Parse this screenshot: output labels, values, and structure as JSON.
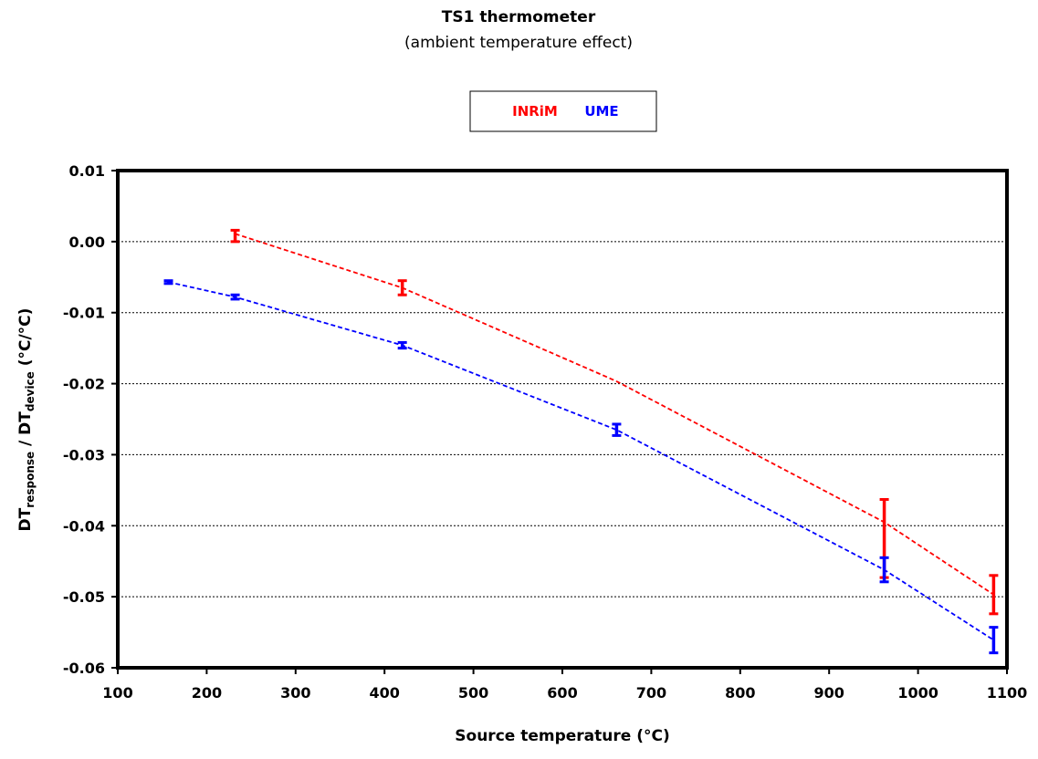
{
  "chart_data": {
    "type": "scatter",
    "title": "TS1 thermometer",
    "subtitle": "(ambient temperature effect)",
    "xlabel": "Source temperature (°C)",
    "ylabel": {
      "prefix": "DT",
      "sub1": "response",
      "mid": " / DT",
      "sub2": "device",
      "suffix": " (°C/°C)"
    },
    "xlim": [
      100,
      1100
    ],
    "ylim": [
      -0.06,
      0.01
    ],
    "x_ticks": [
      "100",
      "200",
      "300",
      "400",
      "500",
      "600",
      "700",
      "800",
      "900",
      "1000",
      "1100"
    ],
    "y_ticks": [
      "0.01",
      "0.00",
      "-0.01",
      "-0.02",
      "-0.03",
      "-0.04",
      "-0.05",
      "-0.06"
    ],
    "grid": "horizontal dotted",
    "legend_position": "top-center",
    "series": [
      {
        "name": "INRiM",
        "color": "#ff0000",
        "points": [
          {
            "x": 232,
            "y": 0.0008,
            "err": 0.0008
          },
          {
            "x": 420,
            "y": -0.0065,
            "err": 0.001
          },
          {
            "x": 962,
            "y": -0.0418,
            "err": 0.0055
          },
          {
            "x": 1085,
            "y": -0.0497,
            "err": 0.0027
          }
        ],
        "trend": [
          [
            232,
            0.0011
          ],
          [
            420,
            -0.0065
          ],
          [
            660,
            -0.0196
          ],
          [
            962,
            -0.0395
          ],
          [
            1085,
            -0.0497
          ]
        ]
      },
      {
        "name": "UME",
        "color": "#0000ff",
        "points": [
          {
            "x": 157,
            "y": -0.0057,
            "err": 0.0002
          },
          {
            "x": 232,
            "y": -0.0078,
            "err": 0.0003
          },
          {
            "x": 420,
            "y": -0.0146,
            "err": 0.0004
          },
          {
            "x": 661,
            "y": -0.0265,
            "err": 0.0008
          },
          {
            "x": 962,
            "y": -0.0462,
            "err": 0.0017
          },
          {
            "x": 1085,
            "y": -0.0561,
            "err": 0.0018
          }
        ],
        "trend": [
          [
            157,
            -0.0057
          ],
          [
            232,
            -0.0078
          ],
          [
            420,
            -0.0146
          ],
          [
            661,
            -0.0265
          ],
          [
            962,
            -0.0462
          ],
          [
            1085,
            -0.0561
          ]
        ]
      }
    ]
  }
}
